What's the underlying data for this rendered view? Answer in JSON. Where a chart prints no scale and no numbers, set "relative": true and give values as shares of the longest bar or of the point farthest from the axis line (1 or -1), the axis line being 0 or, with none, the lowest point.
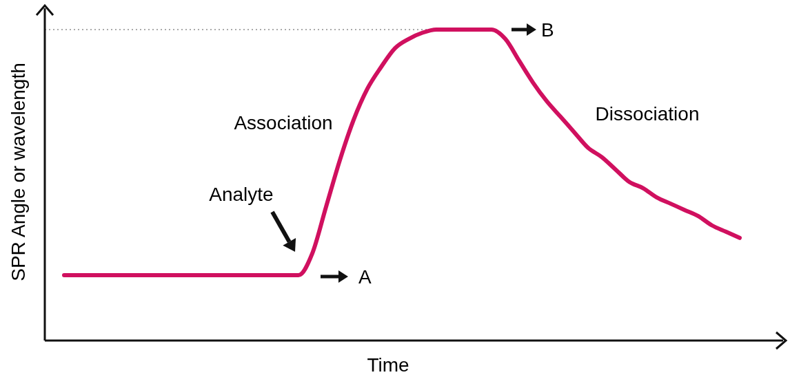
{
  "chart_data": {
    "type": "line",
    "relative": true,
    "categories": [
      null,
      null,
      null,
      null,
      null,
      null,
      null,
      null,
      null,
      null,
      null,
      null,
      null,
      null,
      null,
      null,
      null,
      null,
      null,
      null,
      null,
      null,
      null,
      null,
      null,
      null,
      null,
      null,
      null,
      null,
      null,
      null,
      null,
      null,
      null,
      null,
      null,
      null,
      null,
      null,
      null,
      null,
      null,
      null,
      null,
      null,
      null,
      null,
      null,
      null
    ],
    "values": [
      0.21,
      0.21,
      0.21,
      0.21,
      0.21,
      0.21,
      0.21,
      0.21,
      0.21,
      0.21,
      0.21,
      0.21,
      0.21,
      0.21,
      0.21,
      0.21,
      0.21,
      0.21,
      0.28,
      0.43,
      0.58,
      0.71,
      0.81,
      0.88,
      0.94,
      0.97,
      0.99,
      1,
      1,
      1,
      1,
      1,
      0.97,
      0.9,
      0.83,
      0.77,
      0.72,
      0.67,
      0.62,
      0.59,
      0.55,
      0.51,
      0.49,
      0.46,
      0.44,
      0.42,
      0.4,
      0.37,
      0.35,
      0.33
    ],
    "color": "#d0105f",
    "xlabel": "Time",
    "ylabel": "SPR Angle or wavelength",
    "annotations": [
      "Analyte",
      "Association",
      "Dissociation",
      "A",
      "B"
    ],
    "ref_lines": [
      {
        "axis": "y",
        "value": 1,
        "line_style": "dotted",
        "color": "#555555"
      }
    ]
  }
}
